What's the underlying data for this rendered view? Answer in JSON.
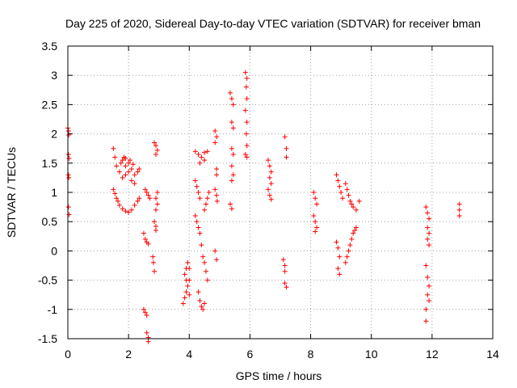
{
  "chart_data": {
    "type": "scatter",
    "title": "Day 225 of 2020, Sidereal Day-to-day VTEC variation (SDTVAR) for receiver bman",
    "xlabel": "GPS time / hours",
    "ylabel": "SDTVAR / TECUs",
    "xlim": [
      0,
      14
    ],
    "ylim": [
      -1.5,
      3.5
    ],
    "xticks": [
      0,
      2,
      4,
      6,
      8,
      10,
      12,
      14
    ],
    "yticks": [
      -1.5,
      -1,
      -0.5,
      0,
      0.5,
      1,
      1.5,
      2,
      2.5,
      3,
      3.5
    ],
    "grid": true,
    "marker": "plus",
    "color": "#ff0000",
    "series": [
      {
        "name": "SDTVAR",
        "points": [
          [
            0.0,
            2.1
          ],
          [
            0.02,
            2.05
          ],
          [
            0.03,
            1.98
          ],
          [
            0.02,
            1.65
          ],
          [
            0.04,
            1.58
          ],
          [
            0.02,
            1.3
          ],
          [
            0.03,
            1.25
          ],
          [
            0.02,
            0.75
          ],
          [
            0.04,
            0.62
          ],
          [
            1.5,
            1.75
          ],
          [
            1.55,
            1.6
          ],
          [
            1.6,
            1.45
          ],
          [
            1.5,
            1.05
          ],
          [
            1.55,
            0.98
          ],
          [
            1.6,
            0.9
          ],
          [
            1.65,
            0.85
          ],
          [
            1.7,
            0.78
          ],
          [
            1.8,
            0.72
          ],
          [
            1.9,
            0.68
          ],
          [
            2.0,
            0.66
          ],
          [
            2.1,
            0.7
          ],
          [
            2.2,
            0.78
          ],
          [
            2.3,
            0.85
          ],
          [
            2.35,
            0.9
          ],
          [
            1.7,
            1.35
          ],
          [
            1.75,
            1.5
          ],
          [
            1.8,
            1.55
          ],
          [
            1.85,
            1.6
          ],
          [
            1.9,
            1.58
          ],
          [
            2.0,
            1.5
          ],
          [
            2.1,
            1.4
          ],
          [
            2.2,
            1.3
          ],
          [
            2.3,
            1.35
          ],
          [
            2.35,
            1.4
          ],
          [
            1.8,
            1.25
          ],
          [
            1.9,
            1.3
          ],
          [
            2.0,
            1.35
          ],
          [
            2.1,
            1.2
          ],
          [
            2.2,
            1.15
          ],
          [
            1.9,
            1.45
          ],
          [
            2.05,
            1.55
          ],
          [
            2.15,
            1.48
          ],
          [
            2.5,
            -1.0
          ],
          [
            2.55,
            -1.05
          ],
          [
            2.6,
            -1.1
          ],
          [
            2.6,
            -1.4
          ],
          [
            2.65,
            -1.48
          ],
          [
            2.65,
            -1.55
          ],
          [
            2.5,
            0.3
          ],
          [
            2.55,
            0.2
          ],
          [
            2.6,
            0.15
          ],
          [
            2.65,
            0.12
          ],
          [
            2.55,
            1.05
          ],
          [
            2.6,
            1.0
          ],
          [
            2.65,
            0.95
          ],
          [
            2.7,
            0.9
          ],
          [
            2.8,
            -0.1
          ],
          [
            2.82,
            -0.2
          ],
          [
            2.85,
            -0.35
          ],
          [
            2.85,
            0.5
          ],
          [
            2.9,
            0.42
          ],
          [
            2.9,
            0.35
          ],
          [
            2.85,
            1.85
          ],
          [
            2.9,
            1.8
          ],
          [
            2.95,
            1.72
          ],
          [
            2.9,
            1.65
          ],
          [
            2.95,
            1.0
          ],
          [
            2.9,
            0.9
          ],
          [
            2.95,
            0.8
          ],
          [
            2.9,
            0.7
          ],
          [
            3.8,
            -0.9
          ],
          [
            3.85,
            -0.8
          ],
          [
            3.9,
            -0.7
          ],
          [
            3.95,
            -0.6
          ],
          [
            4.0,
            -0.5
          ],
          [
            3.85,
            -0.4
          ],
          [
            3.9,
            -0.3
          ],
          [
            3.95,
            -0.2
          ],
          [
            4.0,
            -0.3
          ],
          [
            3.9,
            -0.5
          ],
          [
            4.0,
            -0.75
          ],
          [
            4.2,
            1.7
          ],
          [
            4.3,
            1.65
          ],
          [
            4.4,
            1.6
          ],
          [
            4.5,
            1.68
          ],
          [
            4.6,
            1.7
          ],
          [
            4.35,
            1.5
          ],
          [
            4.5,
            1.55
          ],
          [
            4.2,
            1.2
          ],
          [
            4.25,
            1.1
          ],
          [
            4.3,
            1.0
          ],
          [
            4.35,
            0.9
          ],
          [
            4.2,
            0.6
          ],
          [
            4.25,
            0.5
          ],
          [
            4.3,
            0.4
          ],
          [
            4.35,
            0.3
          ],
          [
            4.4,
            0.1
          ],
          [
            4.45,
            -0.1
          ],
          [
            4.5,
            -0.2
          ],
          [
            4.55,
            -0.35
          ],
          [
            4.6,
            -0.5
          ],
          [
            4.3,
            -0.7
          ],
          [
            4.35,
            -0.85
          ],
          [
            4.4,
            -0.95
          ],
          [
            4.45,
            -1.0
          ],
          [
            4.5,
            -0.9
          ],
          [
            4.5,
            0.7
          ],
          [
            4.55,
            0.8
          ],
          [
            4.6,
            0.9
          ],
          [
            4.65,
            1.0
          ],
          [
            4.85,
            2.05
          ],
          [
            4.9,
            1.95
          ],
          [
            4.85,
            1.85
          ],
          [
            4.9,
            1.4
          ],
          [
            4.9,
            1.3
          ],
          [
            4.85,
            1.05
          ],
          [
            4.9,
            0.95
          ],
          [
            4.92,
            0.85
          ],
          [
            4.85,
            0.0
          ],
          [
            4.9,
            -0.15
          ],
          [
            5.35,
            2.7
          ],
          [
            5.4,
            2.6
          ],
          [
            5.45,
            2.5
          ],
          [
            5.4,
            2.2
          ],
          [
            5.45,
            2.1
          ],
          [
            5.4,
            1.75
          ],
          [
            5.45,
            1.65
          ],
          [
            5.4,
            1.45
          ],
          [
            5.45,
            1.3
          ],
          [
            5.4,
            1.2
          ],
          [
            5.35,
            0.8
          ],
          [
            5.4,
            0.72
          ],
          [
            5.85,
            3.05
          ],
          [
            5.9,
            2.95
          ],
          [
            5.88,
            2.8
          ],
          [
            5.9,
            2.6
          ],
          [
            5.85,
            2.4
          ],
          [
            5.9,
            2.2
          ],
          [
            5.88,
            2.0
          ],
          [
            5.9,
            1.8
          ],
          [
            5.85,
            1.65
          ],
          [
            5.9,
            1.6
          ],
          [
            6.6,
            1.55
          ],
          [
            6.65,
            1.45
          ],
          [
            6.7,
            1.35
          ],
          [
            6.65,
            1.25
          ],
          [
            6.7,
            1.15
          ],
          [
            6.6,
            1.05
          ],
          [
            6.65,
            0.95
          ],
          [
            6.7,
            0.88
          ],
          [
            7.15,
            1.95
          ],
          [
            7.2,
            1.75
          ],
          [
            7.2,
            1.6
          ],
          [
            7.1,
            -0.15
          ],
          [
            7.15,
            -0.25
          ],
          [
            7.15,
            -0.35
          ],
          [
            7.15,
            -0.55
          ],
          [
            7.2,
            -0.62
          ],
          [
            8.1,
            1.0
          ],
          [
            8.15,
            0.9
          ],
          [
            8.2,
            0.8
          ],
          [
            8.1,
            0.6
          ],
          [
            8.15,
            0.5
          ],
          [
            8.2,
            0.4
          ],
          [
            8.15,
            0.33
          ],
          [
            8.85,
            1.3
          ],
          [
            8.9,
            1.2
          ],
          [
            8.95,
            1.1
          ],
          [
            9.0,
            1.0
          ],
          [
            9.05,
            0.9
          ],
          [
            8.85,
            0.15
          ],
          [
            8.9,
            0.05
          ],
          [
            8.95,
            -0.1
          ],
          [
            8.9,
            -0.3
          ],
          [
            8.95,
            -0.4
          ],
          [
            9.15,
            -0.2
          ],
          [
            9.2,
            -0.1
          ],
          [
            9.25,
            0.0
          ],
          [
            9.3,
            0.1
          ],
          [
            9.35,
            0.2
          ],
          [
            9.4,
            0.3
          ],
          [
            9.45,
            0.35
          ],
          [
            9.5,
            0.4
          ],
          [
            9.15,
            1.15
          ],
          [
            9.2,
            1.05
          ],
          [
            9.25,
            0.95
          ],
          [
            9.3,
            0.85
          ],
          [
            9.35,
            0.8
          ],
          [
            9.4,
            0.75
          ],
          [
            9.5,
            0.7
          ],
          [
            9.6,
            0.85
          ],
          [
            11.8,
            0.75
          ],
          [
            11.85,
            0.65
          ],
          [
            11.9,
            0.55
          ],
          [
            11.85,
            0.4
          ],
          [
            11.9,
            0.3
          ],
          [
            11.85,
            0.2
          ],
          [
            11.9,
            0.1
          ],
          [
            11.8,
            -0.25
          ],
          [
            11.85,
            -0.45
          ],
          [
            11.9,
            -0.6
          ],
          [
            11.85,
            -0.75
          ],
          [
            11.9,
            -0.85
          ],
          [
            11.8,
            -1.0
          ],
          [
            11.8,
            -1.2
          ],
          [
            12.9,
            0.8
          ],
          [
            12.9,
            0.7
          ],
          [
            12.9,
            0.6
          ]
        ]
      }
    ]
  }
}
